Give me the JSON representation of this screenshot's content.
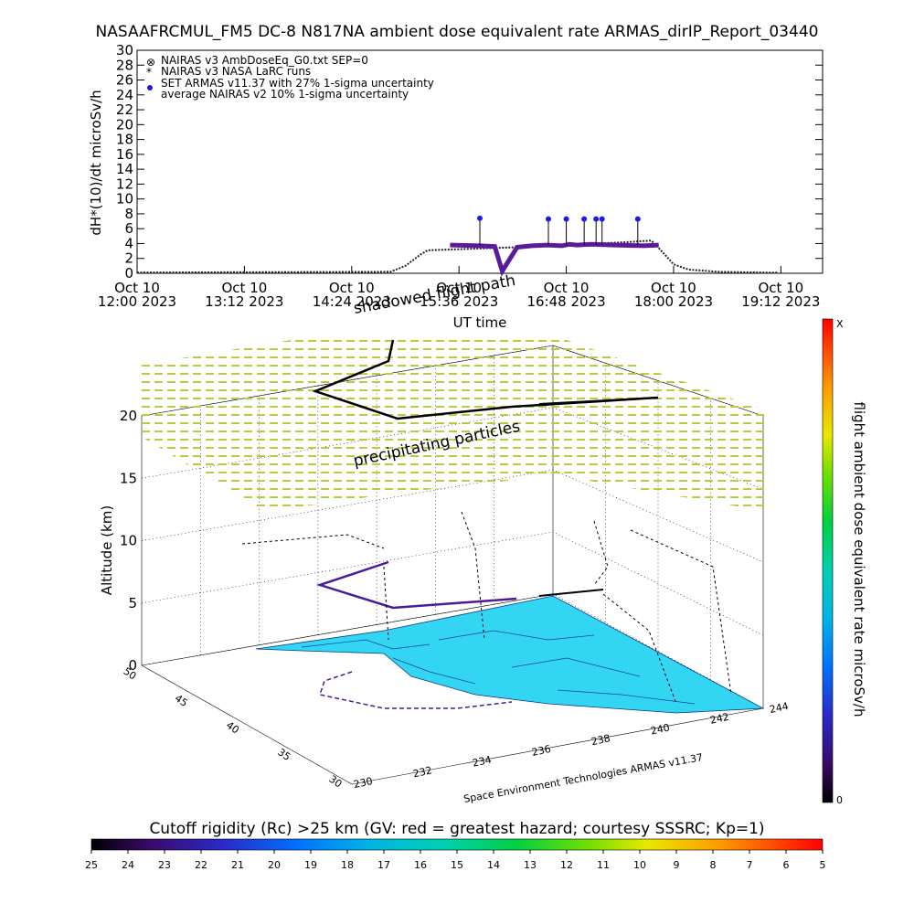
{
  "title": "NASAAFRCMUL_FM5 DC-8   N817NA ambient dose equivalent rate ARMAS_dirIP_Report_03440",
  "colors": {
    "armas": "#1a1aee",
    "armas_low": "#5a1a9a",
    "nairas": "#222222",
    "surface": "#33d6f2"
  },
  "chart_data": [
    {
      "type": "line",
      "ylabel": "dH*(10)/dt microSv/h",
      "xlabel": "UT time",
      "ylim": [
        0,
        30
      ],
      "yticks": [
        0,
        2,
        4,
        6,
        8,
        10,
        12,
        14,
        16,
        18,
        20,
        22,
        24,
        26,
        28,
        30
      ],
      "xlim": [
        "2023-10-10 12:00",
        "2023-10-10 19:40"
      ],
      "xtick_labels": [
        {
          "date": "Oct 10",
          "time": "12:00 2023"
        },
        {
          "date": "Oct 10",
          "time": "13:12 2023"
        },
        {
          "date": "Oct 10",
          "time": "14:24 2023"
        },
        {
          "date": "Oct 10",
          "time": "15:36 2023"
        },
        {
          "date": "Oct 10",
          "time": "16:48 2023"
        },
        {
          "date": "Oct 10",
          "time": "18:00 2023"
        },
        {
          "date": "Oct 10",
          "time": "19:12 2023"
        }
      ],
      "legend": [
        "NAIRAS v3 AmbDoseEq_G0.txt SEP=0",
        "NAIRAS v3 NASA LaRC runs",
        "SET ARMAS v11.37 with 27% 1-sigma uncertainty",
        "average NAIRAS v2 10% 1-sigma uncertainty"
      ],
      "series": [
        {
          "name": "NAIRAS v3 AmbDoseEq_G0.txt SEP=0",
          "x": [
            "2023-10-10 12:00",
            "2023-10-10 14:50",
            "2023-10-10 15:00",
            "2023-10-10 15:10",
            "2023-10-10 15:15",
            "2023-10-10 15:30",
            "2023-10-10 16:00",
            "2023-10-10 16:30",
            "2023-10-10 17:00",
            "2023-10-10 17:30",
            "2023-10-10 17:45",
            "2023-10-10 17:50",
            "2023-10-10 18:00",
            "2023-10-10 18:10",
            "2023-10-10 18:30",
            "2023-10-10 19:00",
            "2023-10-10 19:10"
          ],
          "y": [
            0.1,
            0.2,
            1.0,
            2.5,
            3.1,
            3.2,
            3.4,
            3.6,
            3.9,
            4.2,
            4.4,
            3.4,
            1.2,
            0.5,
            0.2,
            0.1,
            0.1
          ]
        },
        {
          "name": "SET ARMAS v11.37 with 27% 1-sigma uncertainty",
          "x": [
            "2023-10-10 15:30",
            "2023-10-10 15:50",
            "2023-10-10 16:00",
            "2023-10-10 16:05",
            "2023-10-10 16:15",
            "2023-10-10 16:25",
            "2023-10-10 16:35",
            "2023-10-10 16:45",
            "2023-10-10 16:50",
            "2023-10-10 16:55",
            "2023-10-10 17:05",
            "2023-10-10 17:20",
            "2023-10-10 17:40",
            "2023-10-10 17:50"
          ],
          "y": [
            3.8,
            3.7,
            3.6,
            0.3,
            3.5,
            3.7,
            3.8,
            3.7,
            3.9,
            3.8,
            3.9,
            3.8,
            3.7,
            3.8
          ],
          "peaks": {
            "x": [
              "2023-10-10 15:50",
              "2023-10-10 16:36",
              "2023-10-10 16:48",
              "2023-10-10 17:00",
              "2023-10-10 17:08",
              "2023-10-10 17:12",
              "2023-10-10 17:36"
            ],
            "y": [
              7.4,
              7.3,
              7.3,
              7.3,
              7.3,
              7.3,
              7.3
            ]
          }
        }
      ],
      "annotations": [
        "shadowed flight path"
      ]
    },
    {
      "type": "scatter",
      "zlabel": "Altitude (km)",
      "zticks": [
        0,
        5,
        10,
        15,
        20
      ],
      "lat_ticks": [
        50,
        45,
        40,
        35,
        30
      ],
      "lon_ticks": [
        230,
        232,
        234,
        236,
        238,
        240,
        242,
        244
      ],
      "annotations": [
        "precipitating particles"
      ],
      "credit": "Space Environment Technologies ARMAS v11.37",
      "colorbar": {
        "label": "flight ambient dose equivalent rate microSv/h",
        "max_label": "X",
        "min_label": "0"
      }
    },
    {
      "type": "heatmap",
      "label": "Cutoff rigidity (Rc) >25 km (GV: red = greatest hazard; courtesy SSSRC; Kp=1)",
      "ticks": [
        25,
        24,
        23,
        22,
        21,
        20,
        19,
        18,
        17,
        16,
        15,
        14,
        13,
        12,
        11,
        10,
        9,
        8,
        7,
        6,
        5
      ]
    }
  ]
}
